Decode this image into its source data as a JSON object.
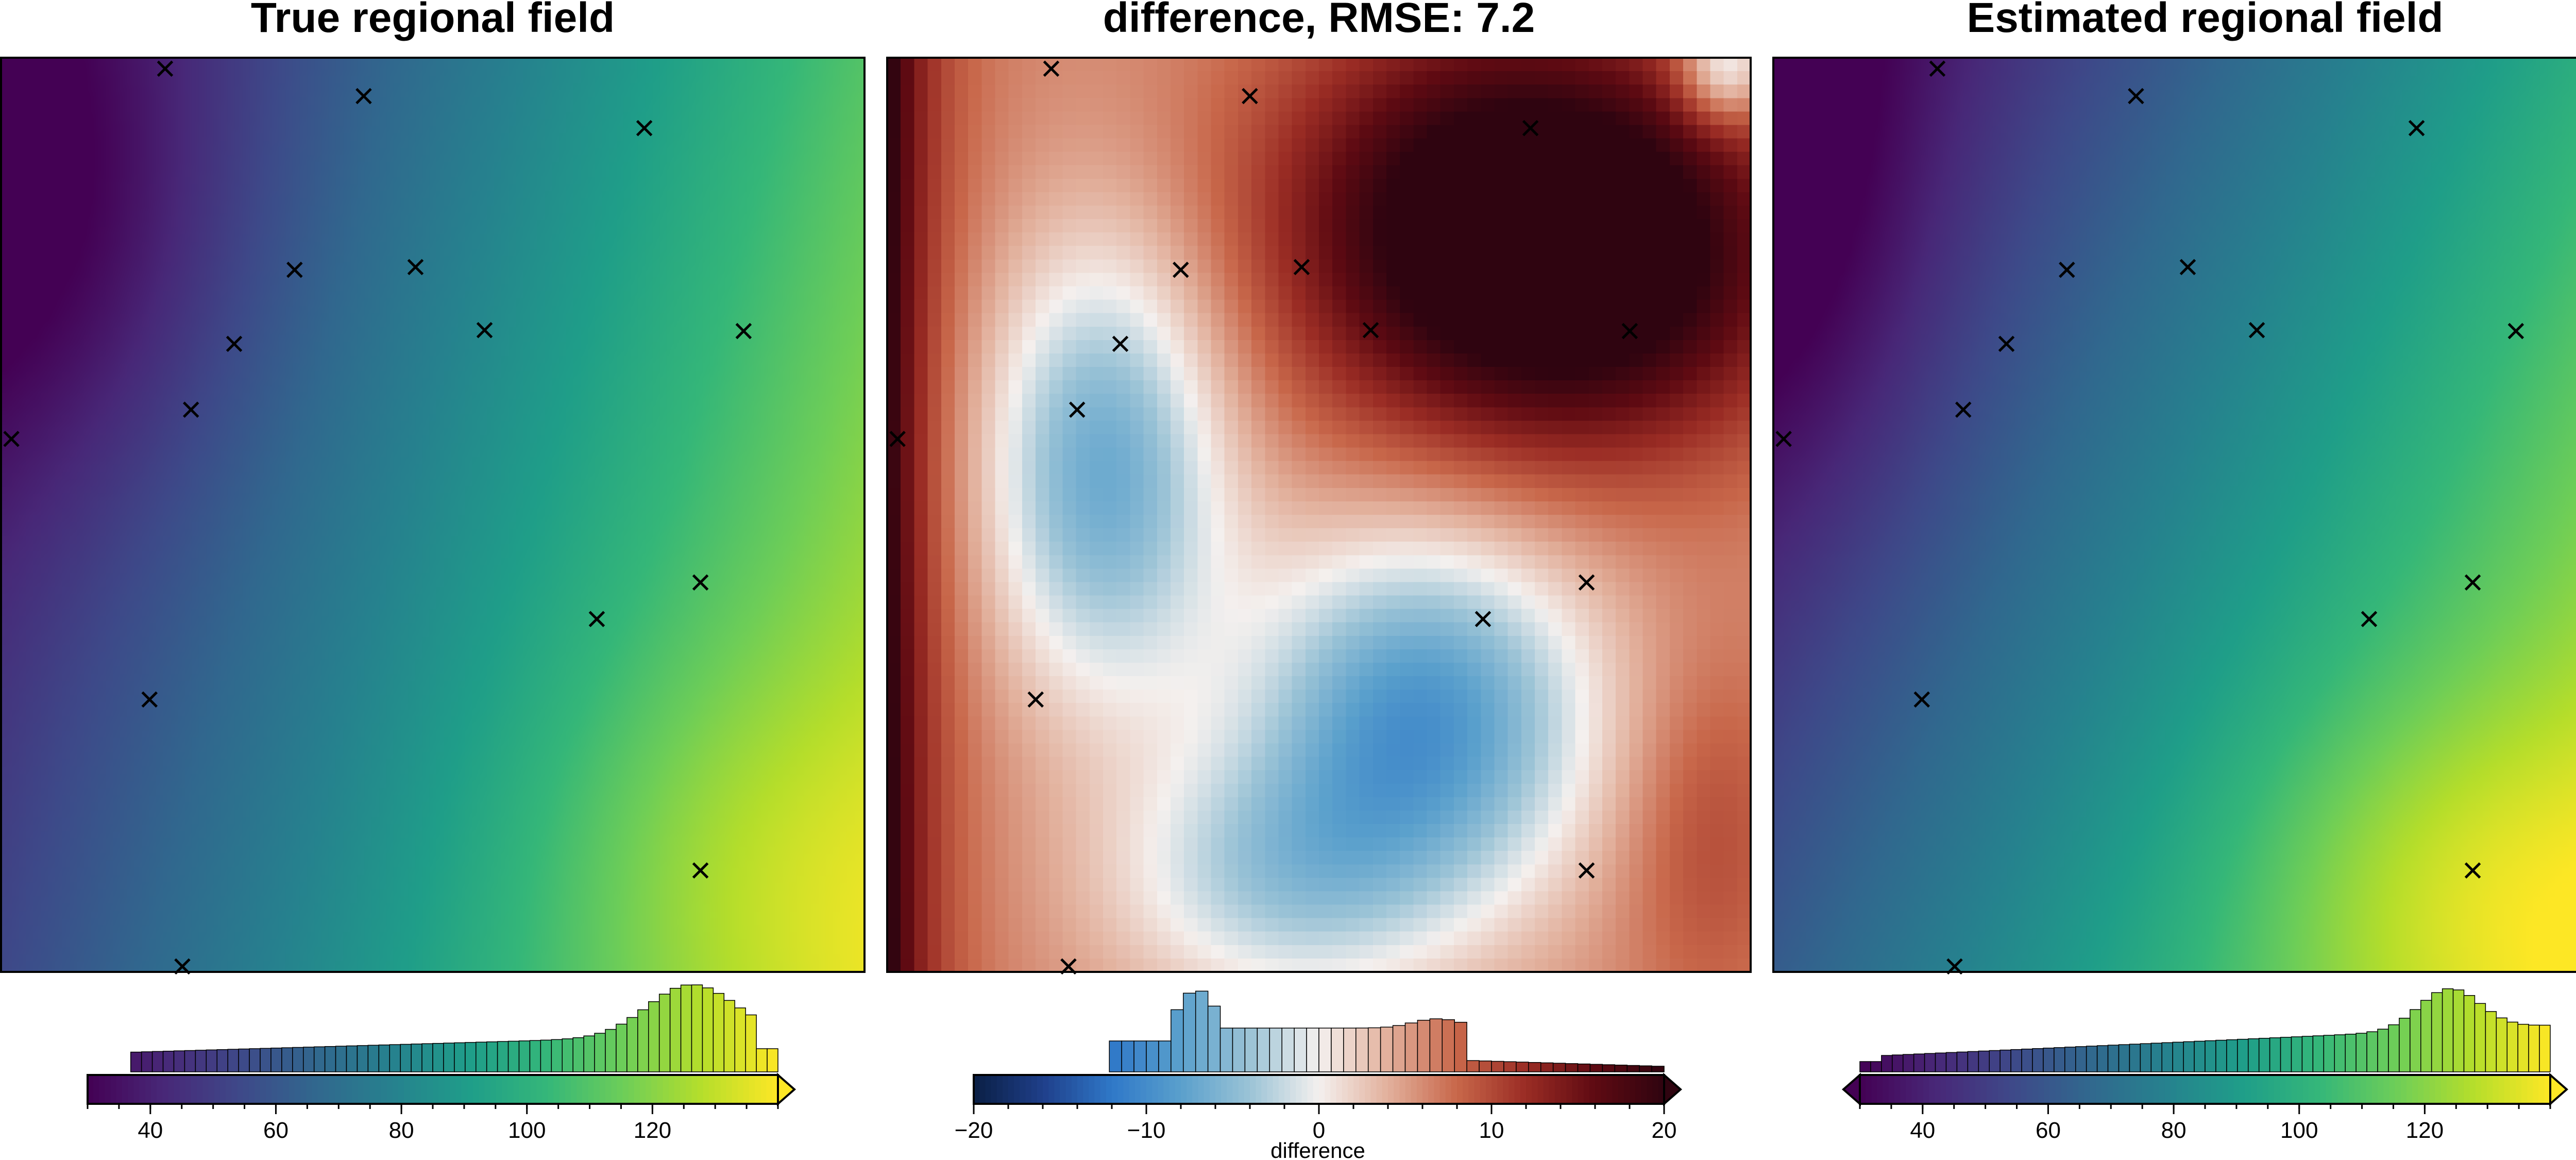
{
  "chart_data": [
    {
      "type": "heatmap",
      "title": "True regional field",
      "colormap": "viridis",
      "color_range": [
        30,
        140
      ],
      "colorbar": {
        "ticks": [
          40,
          60,
          80,
          100,
          120
        ],
        "tick_labels": [
          "40",
          "60",
          "80",
          "100",
          "120"
        ],
        "label": "",
        "extend": "max",
        "histogram": true
      }
    },
    {
      "type": "heatmap",
      "title": "difference, RMSE: 7.2",
      "colormap": "diverging blue-white-red",
      "color_range": [
        -20,
        20
      ],
      "rmse": 7.2,
      "colorbar": {
        "ticks": [
          -20,
          -10,
          0,
          10,
          20
        ],
        "tick_labels": [
          "−20",
          "−10",
          "0",
          "10",
          "20"
        ],
        "label": "difference",
        "extend": "max",
        "histogram": true
      }
    },
    {
      "type": "heatmap",
      "title": "Estimated regional field",
      "colormap": "viridis",
      "color_range": [
        30,
        140
      ],
      "colorbar": {
        "ticks": [
          40,
          60,
          80,
          100,
          120
        ],
        "tick_labels": [
          "40",
          "60",
          "80",
          "100",
          "120"
        ],
        "label": "",
        "extend": "both",
        "histogram": true
      }
    }
  ],
  "constraint_points": [
    [
      0.19,
      0.012
    ],
    [
      0.42,
      0.042
    ],
    [
      0.745,
      0.077
    ],
    [
      0.34,
      0.232
    ],
    [
      0.48,
      0.229
    ],
    [
      0.27,
      0.313
    ],
    [
      0.56,
      0.298
    ],
    [
      0.86,
      0.299
    ],
    [
      0.22,
      0.385
    ],
    [
      0.012,
      0.417
    ],
    [
      0.81,
      0.574
    ],
    [
      0.69,
      0.614
    ],
    [
      0.172,
      0.702
    ],
    [
      0.81,
      0.889
    ],
    [
      0.21,
      0.994
    ]
  ],
  "colors": {
    "viridis": [
      "#440154",
      "#482878",
      "#3e4989",
      "#31688e",
      "#26828e",
      "#1f9e89",
      "#35b779",
      "#6ece58",
      "#b5de2b",
      "#fde725"
    ],
    "diverging": [
      "#0a1f44",
      "#1f3f8a",
      "#2f78c8",
      "#5aa0cc",
      "#9bc3d6",
      "#f4f0ee",
      "#e2b09c",
      "#c8674a",
      "#9a2c24",
      "#5e0a12",
      "#2f0410"
    ],
    "frame": "#000000"
  }
}
